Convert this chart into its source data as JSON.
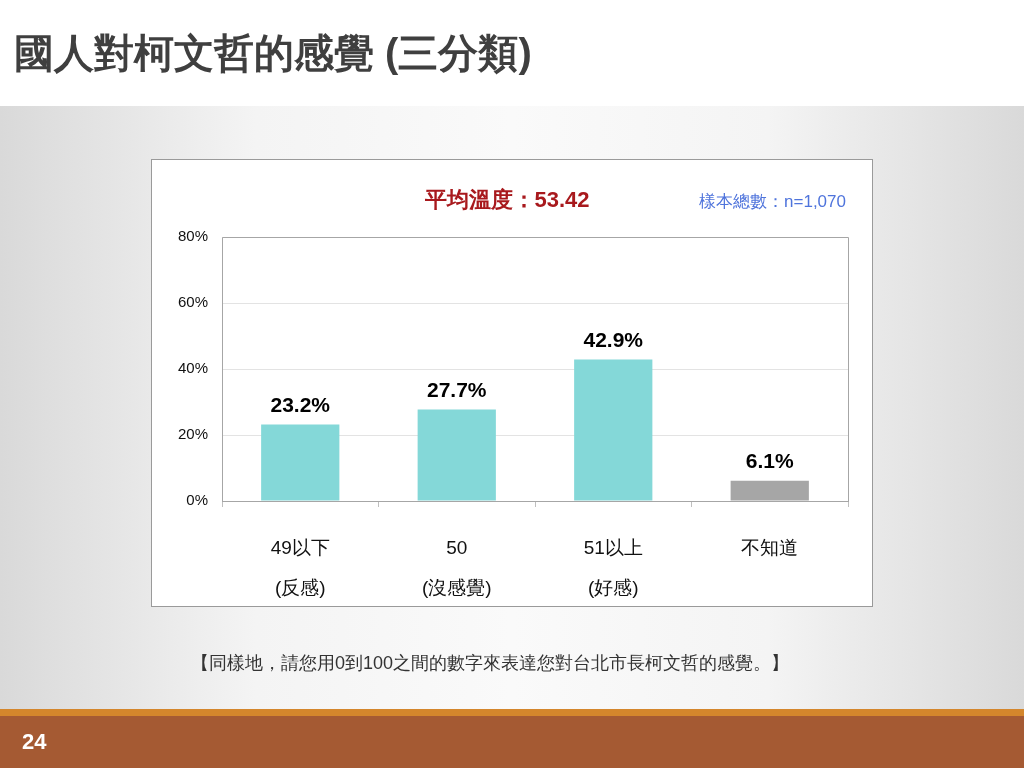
{
  "chart_data": {
    "type": "bar",
    "title": "國人對柯文哲的感覺 (三分類)",
    "categories": [
      "49以下\n(反感)",
      "50\n(沒感覺)",
      "51以上\n(好感)",
      "不知道"
    ],
    "values": [
      23.2,
      27.7,
      42.9,
      6.1
    ],
    "colors": [
      "#84d8d8",
      "#84d8d8",
      "#84d8d8",
      "#a6a6a6"
    ],
    "value_labels": [
      "23.2%",
      "27.7%",
      "42.9%",
      "6.1%"
    ],
    "ylim": [
      0,
      80
    ],
    "yticks": [
      {
        "value": 0,
        "label": "0%"
      },
      {
        "value": 20,
        "label": "20%"
      },
      {
        "value": 40,
        "label": "40%"
      },
      {
        "value": 60,
        "label": "60%"
      },
      {
        "value": 80,
        "label": "80%"
      }
    ],
    "grid": "y",
    "annotations": [
      "平均溫度：53.42",
      "樣本總數：n=1,070",
      "【同樣地，請您用0到100之間的數字來表達您對台北市長柯文哲的感覺。】",
      "24"
    ]
  }
}
